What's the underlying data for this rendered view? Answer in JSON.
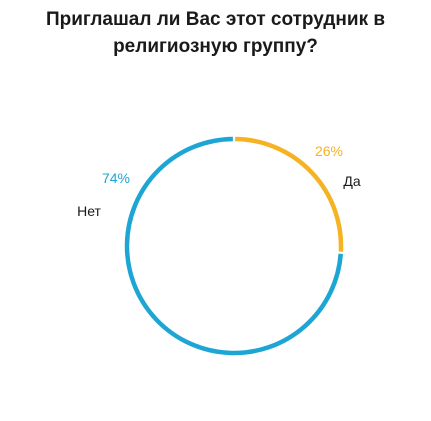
{
  "chart_data": {
    "type": "pie",
    "style": "donut",
    "title_lines": [
      "Приглашал ли Вас этот сотрудник в",
      "религиозную группу?"
    ],
    "slices": [
      {
        "label": "Да",
        "value": 26,
        "value_label": "26%",
        "color": "#f5b324"
      },
      {
        "label": "Нет",
        "value": 74,
        "value_label": "74%",
        "color": "#1da5d4"
      }
    ],
    "start": "top",
    "direction": "clockwise",
    "legend": "none"
  }
}
